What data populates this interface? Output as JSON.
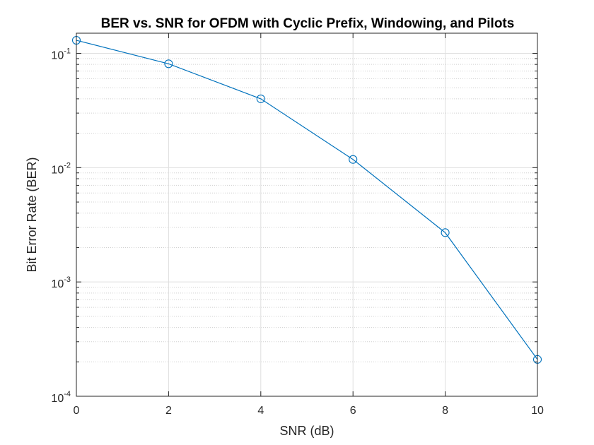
{
  "chart_data": {
    "type": "line",
    "title": "BER vs. SNR for OFDM with Cyclic Prefix, Windowing, and Pilots",
    "xlabel": "SNR (dB)",
    "ylabel": "Bit Error Rate (BER)",
    "x": [
      0,
      2,
      4,
      6,
      8,
      10
    ],
    "xlim": [
      0,
      10
    ],
    "ylim": [
      0.0001,
      0.15
    ],
    "yscale": "log",
    "grid": true,
    "minor_grid": true,
    "marker": "circle",
    "xticks": [
      {
        "value": 0,
        "label": "0"
      },
      {
        "value": 2,
        "label": "2"
      },
      {
        "value": 4,
        "label": "4"
      },
      {
        "value": 6,
        "label": "6"
      },
      {
        "value": 8,
        "label": "8"
      },
      {
        "value": 10,
        "label": "10"
      }
    ],
    "yticks": [
      {
        "value": 0.1,
        "base": "10",
        "exp": "-1"
      },
      {
        "value": 0.01,
        "base": "10",
        "exp": "-2"
      },
      {
        "value": 0.001,
        "base": "10",
        "exp": "-3"
      },
      {
        "value": 0.0001,
        "base": "10",
        "exp": "-4"
      }
    ],
    "series": [
      {
        "values": [
          0.13,
          0.081,
          0.04,
          0.0118,
          0.0027,
          0.00021
        ],
        "color": "#0072BD"
      }
    ]
  },
  "colors": {
    "line": "#0072BD",
    "axis": "#262626",
    "major_grid": "#dfdfdf",
    "minor_grid": "#d0d0d0",
    "background": "#ffffff"
  }
}
